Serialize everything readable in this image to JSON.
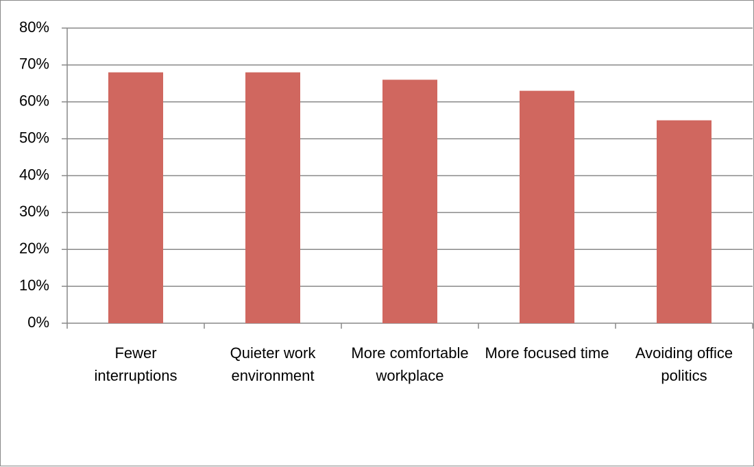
{
  "chart_data": {
    "type": "bar",
    "categories": [
      "Fewer interruptions",
      "Quieter work environment",
      "More comfortable workplace",
      "More focused time",
      "Avoiding office politics"
    ],
    "values": [
      68,
      68,
      66,
      63,
      55
    ],
    "color": "#d0675f",
    "ylim": [
      0,
      80
    ],
    "yticks": [
      {
        "value": 0,
        "label": "0%"
      },
      {
        "value": 10,
        "label": "10%"
      },
      {
        "value": 20,
        "label": "20%"
      },
      {
        "value": 30,
        "label": "30%"
      },
      {
        "value": 40,
        "label": "40%"
      },
      {
        "value": 50,
        "label": "50%"
      },
      {
        "value": 60,
        "label": "60%"
      },
      {
        "value": 70,
        "label": "70%"
      },
      {
        "value": 80,
        "label": "80%"
      }
    ],
    "grid": true
  }
}
